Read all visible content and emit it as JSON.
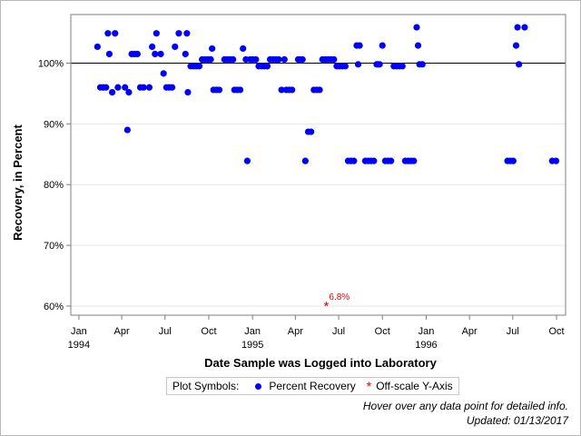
{
  "chart_data": {
    "type": "scatter",
    "xlabel": "Date Sample was Logged into Laboratory",
    "ylabel": "Recovery, in Percent",
    "xlim": [
      "1993-12-15",
      "1996-10-20"
    ],
    "ylim": [
      58.5,
      108
    ],
    "reference_line": 100,
    "grid": "horizontal",
    "x_ticks": [
      {
        "date": "1994-01-01",
        "label": "Jan",
        "year": "1994"
      },
      {
        "date": "1994-04-01",
        "label": "Apr",
        "year": ""
      },
      {
        "date": "1994-07-01",
        "label": "Jul",
        "year": ""
      },
      {
        "date": "1994-10-01",
        "label": "Oct",
        "year": ""
      },
      {
        "date": "1995-01-01",
        "label": "Jan",
        "year": "1995"
      },
      {
        "date": "1995-04-01",
        "label": "Apr",
        "year": ""
      },
      {
        "date": "1995-07-01",
        "label": "Jul",
        "year": ""
      },
      {
        "date": "1995-10-01",
        "label": "Oct",
        "year": ""
      },
      {
        "date": "1996-01-01",
        "label": "Jan",
        "year": "1996"
      },
      {
        "date": "1996-04-01",
        "label": "Apr",
        "year": ""
      },
      {
        "date": "1996-07-01",
        "label": "Jul",
        "year": ""
      },
      {
        "date": "1996-10-01",
        "label": "Oct",
        "year": ""
      }
    ],
    "y_ticks": [
      {
        "value": 60,
        "label": "60%"
      },
      {
        "value": 70,
        "label": "70%"
      },
      {
        "value": 80,
        "label": "80%"
      },
      {
        "value": 90,
        "label": "90%"
      },
      {
        "value": 100,
        "label": "100%"
      }
    ],
    "series": [
      {
        "name": "Percent Recovery",
        "color": "#0000ff",
        "marker": "circle",
        "points": [
          [
            "1994-02-09",
            102.7
          ],
          [
            "1994-02-15",
            96
          ],
          [
            "1994-02-21",
            96
          ],
          [
            "1994-02-27",
            96
          ],
          [
            "1994-03-03",
            104.9
          ],
          [
            "1994-03-06",
            101.5
          ],
          [
            "1994-03-12",
            95.2
          ],
          [
            "1994-03-18",
            104.9
          ],
          [
            "1994-03-24",
            96
          ],
          [
            "1994-04-08",
            96
          ],
          [
            "1994-04-13",
            89
          ],
          [
            "1994-04-16",
            95.2
          ],
          [
            "1994-04-22",
            101.5
          ],
          [
            "1994-04-28",
            101.5
          ],
          [
            "1994-05-04",
            101.5
          ],
          [
            "1994-05-10",
            96
          ],
          [
            "1994-05-17",
            96
          ],
          [
            "1994-05-29",
            96
          ],
          [
            "1994-06-04",
            102.7
          ],
          [
            "1994-06-10",
            101.5
          ],
          [
            "1994-06-13",
            104.9
          ],
          [
            "1994-06-22",
            101.5
          ],
          [
            "1994-06-28",
            98.3
          ],
          [
            "1994-07-04",
            96
          ],
          [
            "1994-07-10",
            96
          ],
          [
            "1994-07-16",
            96
          ],
          [
            "1994-07-22",
            102.7
          ],
          [
            "1994-07-30",
            104.9
          ],
          [
            "1994-08-13",
            101.5
          ],
          [
            "1994-08-16",
            104.9
          ],
          [
            "1994-08-18",
            95.2
          ],
          [
            "1994-08-24",
            99.5
          ],
          [
            "1994-08-30",
            99.5
          ],
          [
            "1994-09-05",
            99.5
          ],
          [
            "1994-09-11",
            99.5
          ],
          [
            "1994-09-17",
            100.6
          ],
          [
            "1994-09-23",
            100.6
          ],
          [
            "1994-09-29",
            100.6
          ],
          [
            "1994-10-05",
            100.6
          ],
          [
            "1994-10-08",
            102.4
          ],
          [
            "1994-10-11",
            95.6
          ],
          [
            "1994-10-17",
            95.6
          ],
          [
            "1994-10-23",
            95.6
          ],
          [
            "1994-11-03",
            100.6
          ],
          [
            "1994-11-09",
            100.6
          ],
          [
            "1994-11-15",
            100.6
          ],
          [
            "1994-11-21",
            100.6
          ],
          [
            "1994-11-24",
            95.6
          ],
          [
            "1994-11-30",
            95.6
          ],
          [
            "1994-12-06",
            95.6
          ],
          [
            "1994-12-12",
            102.4
          ],
          [
            "1994-12-18",
            100.6
          ],
          [
            "1994-12-21",
            83.9
          ],
          [
            "1994-12-27",
            100.6
          ],
          [
            "1995-01-02",
            100.6
          ],
          [
            "1995-01-08",
            100.6
          ],
          [
            "1995-01-14",
            99.5
          ],
          [
            "1995-01-20",
            99.5
          ],
          [
            "1995-01-26",
            99.5
          ],
          [
            "1995-02-01",
            99.5
          ],
          [
            "1995-02-07",
            100.6
          ],
          [
            "1995-02-13",
            100.6
          ],
          [
            "1995-02-19",
            100.6
          ],
          [
            "1995-02-25",
            100.6
          ],
          [
            "1995-03-03",
            95.6
          ],
          [
            "1995-03-09",
            100.6
          ],
          [
            "1995-03-13",
            95.6
          ],
          [
            "1995-03-19",
            95.6
          ],
          [
            "1995-03-25",
            95.6
          ],
          [
            "1995-04-07",
            100.6
          ],
          [
            "1995-04-10",
            100.6
          ],
          [
            "1995-04-16",
            100.6
          ],
          [
            "1995-04-22",
            83.9
          ],
          [
            "1995-04-28",
            88.7
          ],
          [
            "1995-05-04",
            88.7
          ],
          [
            "1995-05-10",
            95.6
          ],
          [
            "1995-05-16",
            95.6
          ],
          [
            "1995-05-22",
            95.6
          ],
          [
            "1995-05-28",
            100.6
          ],
          [
            "1995-06-03",
            100.6
          ],
          [
            "1995-06-09",
            100.6
          ],
          [
            "1995-06-15",
            100.6
          ],
          [
            "1995-06-21",
            100.6
          ],
          [
            "1995-06-27",
            99.5
          ],
          [
            "1995-07-03",
            99.5
          ],
          [
            "1995-07-09",
            99.5
          ],
          [
            "1995-07-15",
            99.5
          ],
          [
            "1995-07-21",
            83.9
          ],
          [
            "1995-07-27",
            83.9
          ],
          [
            "1995-08-02",
            83.9
          ],
          [
            "1995-08-08",
            102.9
          ],
          [
            "1995-08-11",
            99.8
          ],
          [
            "1995-08-14",
            102.9
          ],
          [
            "1995-08-26",
            83.9
          ],
          [
            "1995-09-01",
            83.9
          ],
          [
            "1995-09-07",
            83.9
          ],
          [
            "1995-09-13",
            83.9
          ],
          [
            "1995-09-19",
            99.8
          ],
          [
            "1995-09-22",
            99.8
          ],
          [
            "1995-09-25",
            99.8
          ],
          [
            "1995-10-01",
            102.9
          ],
          [
            "1995-10-07",
            83.9
          ],
          [
            "1995-10-13",
            83.9
          ],
          [
            "1995-10-19",
            83.9
          ],
          [
            "1995-10-25",
            99.5
          ],
          [
            "1995-10-31",
            99.5
          ],
          [
            "1995-11-06",
            99.5
          ],
          [
            "1995-11-12",
            99.5
          ],
          [
            "1995-11-18",
            83.9
          ],
          [
            "1995-11-24",
            83.9
          ],
          [
            "1995-11-30",
            83.9
          ],
          [
            "1995-12-06",
            83.9
          ],
          [
            "1995-12-12",
            105.9
          ],
          [
            "1995-12-15",
            102.9
          ],
          [
            "1995-12-18",
            99.8
          ],
          [
            "1995-12-24",
            99.8
          ],
          [
            "1996-06-20",
            83.9
          ],
          [
            "1996-06-26",
            83.9
          ],
          [
            "1996-07-02",
            83.9
          ],
          [
            "1996-07-08",
            102.9
          ],
          [
            "1996-07-11",
            105.9
          ],
          [
            "1996-07-14",
            99.8
          ],
          [
            "1996-07-26",
            105.9
          ],
          [
            "1996-09-22",
            83.9
          ],
          [
            "1996-09-30",
            83.9
          ]
        ]
      },
      {
        "name": "Off-scale Y-Axis",
        "color": "#e00000",
        "marker": "star",
        "points": [
          [
            "1995-06-05",
            60,
            "6.8%"
          ]
        ]
      }
    ]
  },
  "legend": {
    "title": "Plot Symbols:",
    "items": [
      {
        "label": "Percent Recovery",
        "symbol": "circle",
        "color": "#0000ff"
      },
      {
        "label": "Off-scale Y-Axis",
        "symbol": "star",
        "color": "#e00000"
      }
    ]
  },
  "notes": {
    "hover": "Hover over any data point for detailed info.",
    "updated": "Updated: 01/13/2017"
  }
}
